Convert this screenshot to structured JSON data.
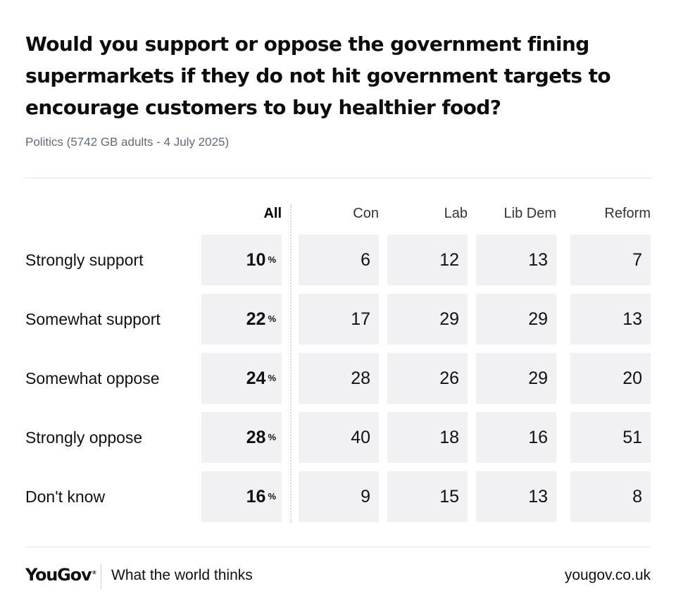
{
  "title": "Would you support or oppose the government fining supermarkets if they do not hit government targets to encourage customers to buy healthier food?",
  "subtitle": "Politics (5742 GB adults - 4 July 2025)",
  "footer": {
    "logo": "YouGov",
    "logo_mark": "®",
    "tagline": "What the world thinks",
    "url": "yougov.co.uk"
  },
  "chart_data": {
    "type": "table",
    "title": "Would you support or oppose the government fining supermarkets if they do not hit government targets to encourage customers to buy healthier food?",
    "unit_symbol": "%",
    "columns": [
      "All",
      "Con",
      "Lab",
      "Lib Dem",
      "Reform"
    ],
    "rows": [
      {
        "label": "Strongly support",
        "values": [
          10,
          6,
          12,
          13,
          7
        ]
      },
      {
        "label": "Somewhat support",
        "values": [
          22,
          17,
          29,
          29,
          13
        ]
      },
      {
        "label": "Somewhat oppose",
        "values": [
          24,
          28,
          26,
          29,
          20
        ]
      },
      {
        "label": "Strongly oppose",
        "values": [
          28,
          40,
          18,
          16,
          51
        ]
      },
      {
        "label": "Don't know",
        "values": [
          16,
          9,
          15,
          13,
          8
        ]
      }
    ]
  }
}
